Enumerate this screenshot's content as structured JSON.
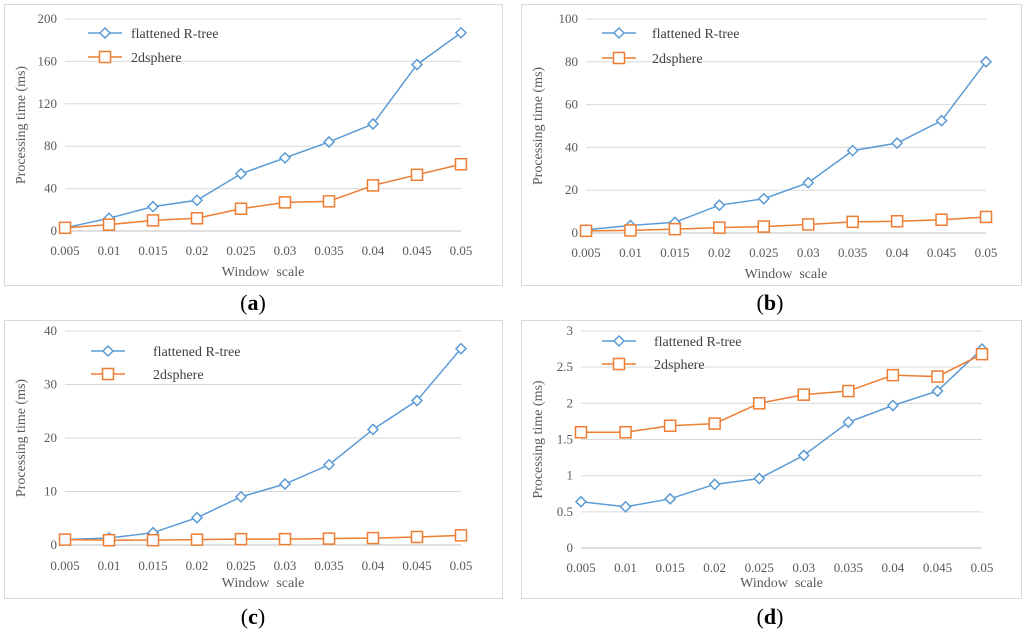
{
  "colors": {
    "series1": "#5b9bd5",
    "series2": "#ed7d31",
    "grid": "#d9d9d9",
    "axis": "#bfbfbf",
    "text": "#595959"
  },
  "chart_data": [
    {
      "id": "a",
      "type": "line",
      "panel_label_open": "(",
      "panel_label_letter": "a",
      "panel_label_close": ")",
      "xlabel": "Window  scale",
      "ylabel": "Processing time (ms)",
      "categories": [
        "0.005",
        "0.01",
        "0.015",
        "0.02",
        "0.025",
        "0.03",
        "0.035",
        "0.04",
        "0.045",
        "0.05"
      ],
      "ylim": [
        0,
        200
      ],
      "yticks": [
        "0",
        "40",
        "80",
        "120",
        "160",
        "200"
      ],
      "ytick_values": [
        0,
        40,
        80,
        120,
        160,
        200
      ],
      "legend": "top-left",
      "series": [
        {
          "name": "flattened R-tree",
          "marker": "diamond",
          "values": [
            3,
            12,
            23,
            29,
            54,
            69,
            84,
            101,
            157,
            187
          ]
        },
        {
          "name": "2dsphere",
          "marker": "square",
          "values": [
            3,
            6,
            10,
            12,
            21,
            27,
            28,
            43,
            53,
            63
          ]
        }
      ]
    },
    {
      "id": "b",
      "type": "line",
      "panel_label_open": "(",
      "panel_label_letter": "b",
      "panel_label_close": ")",
      "xlabel": "Window  scale",
      "ylabel": "Processing time (ms)",
      "categories": [
        "0.005",
        "0.01",
        "0.015",
        "0.02",
        "0.025",
        "0.03",
        "0.035",
        "0.04",
        "0.045",
        "0.05"
      ],
      "ylim": [
        0,
        100
      ],
      "yticks": [
        "0",
        "20",
        "40",
        "60",
        "80",
        "100"
      ],
      "ytick_values": [
        0,
        20,
        40,
        60,
        80,
        100
      ],
      "legend": "top-left",
      "series": [
        {
          "name": "flattened R-tree",
          "marker": "diamond",
          "values": [
            1.5,
            3.5,
            5,
            13,
            16,
            23.5,
            38.5,
            42,
            52.5,
            80
          ]
        },
        {
          "name": "2dsphere",
          "marker": "square",
          "values": [
            1,
            1.2,
            1.8,
            2.5,
            3,
            4,
            5.2,
            5.5,
            6.2,
            7.5
          ]
        }
      ]
    },
    {
      "id": "c",
      "type": "line",
      "panel_label_open": "(",
      "panel_label_letter": "c",
      "panel_label_close": ")",
      "xlabel": "Window  scale",
      "ylabel": "Processing time (ms)",
      "categories": [
        "0.005",
        "0.01",
        "0.015",
        "0.02",
        "0.025",
        "0.03",
        "0.035",
        "0.04",
        "0.045",
        "0.05"
      ],
      "ylim": [
        0,
        40
      ],
      "yticks": [
        "0",
        "10",
        "20",
        "30",
        "40"
      ],
      "ytick_values": [
        0,
        10,
        20,
        30,
        40
      ],
      "legend": "top-left",
      "series": [
        {
          "name": "flattened R-tree",
          "marker": "diamond",
          "values": [
            1,
            1.3,
            2.3,
            5.1,
            9,
            11.4,
            15,
            21.6,
            27,
            36.7
          ]
        },
        {
          "name": "2dsphere",
          "marker": "square",
          "values": [
            1,
            0.9,
            0.9,
            1,
            1.1,
            1.1,
            1.2,
            1.3,
            1.5,
            1.8
          ]
        }
      ]
    },
    {
      "id": "d",
      "type": "line",
      "panel_label_open": "(",
      "panel_label_letter": "d",
      "panel_label_close": ")",
      "xlabel": "Window  scale",
      "ylabel": "Processing time (ms)",
      "categories": [
        "0.005",
        "0.01",
        "0.015",
        "0.02",
        "0.025",
        "0.03",
        "0.035",
        "0.04",
        "0.045",
        "0.05"
      ],
      "ylim": [
        0,
        3
      ],
      "yticks": [
        "0",
        "0.5",
        "1",
        "1.5",
        "2",
        "2.5",
        "3"
      ],
      "ytick_values": [
        0,
        0.5,
        1,
        1.5,
        2,
        2.5,
        3
      ],
      "legend": "top-left",
      "series": [
        {
          "name": "flattened R-tree",
          "marker": "diamond",
          "values": [
            0.64,
            0.57,
            0.68,
            0.88,
            0.96,
            1.28,
            1.74,
            1.97,
            2.17,
            2.75
          ]
        },
        {
          "name": "2dsphere",
          "marker": "square",
          "values": [
            1.6,
            1.6,
            1.69,
            1.72,
            2.0,
            2.12,
            2.17,
            2.39,
            2.37,
            2.68
          ]
        }
      ]
    }
  ]
}
